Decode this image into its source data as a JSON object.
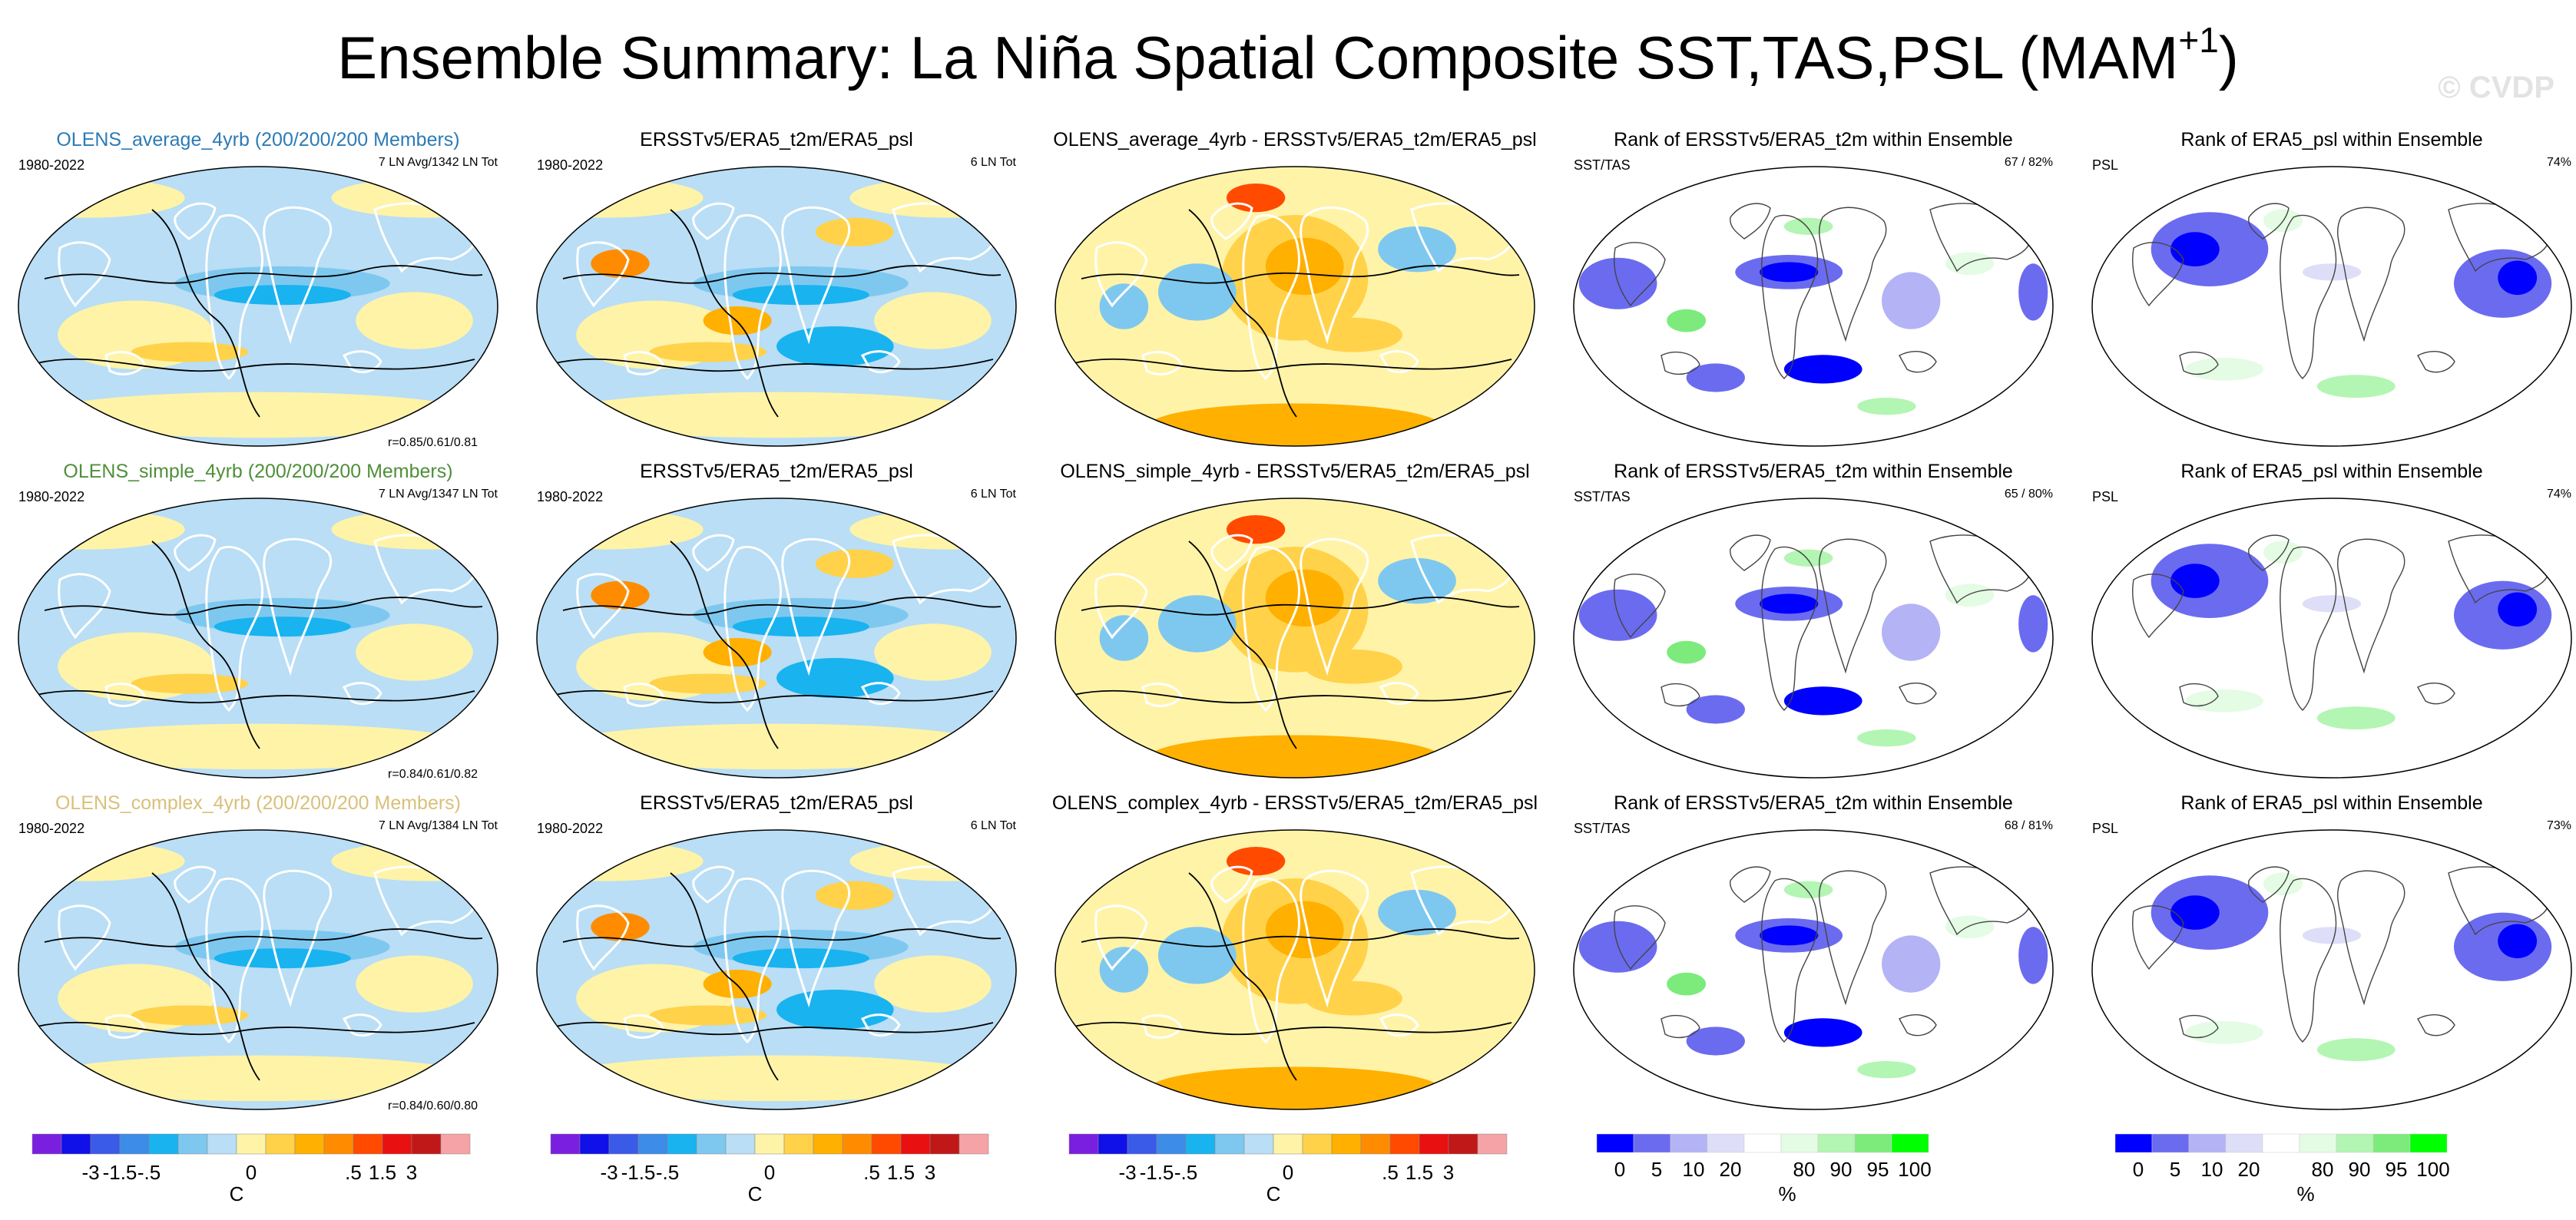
{
  "title": "Ensemble Summary: La Niña Spatial Composite SST,TAS,PSL (MAM",
  "title_sup": "+1",
  "title_close": ")",
  "watermark": "© CVDP",
  "colors": {
    "temp_scale": [
      "#7a1fe0",
      "#1010e8",
      "#3a5ae8",
      "#3c8ce8",
      "#19b3ef",
      "#7ec8ef",
      "#b9def5",
      "#fff3a8",
      "#ffd24a",
      "#ffb000",
      "#ff8c00",
      "#ff4a00",
      "#e81010",
      "#c01818",
      "#f5a3a6"
    ],
    "rank_scale": [
      "#0000ff",
      "#6b6bf0",
      "#b3b3f5",
      "#dedef8",
      "#ffffff",
      "#e4fbe4",
      "#b3f5b3",
      "#7ceb7c",
      "#00ff00"
    ]
  },
  "chart_data": {
    "type": "map_panels",
    "rows": [
      {
        "panels": [
          {
            "title": "OLENS_average_4yrb (200/200/200 Members)",
            "title_color": "#2c7bb6",
            "left": "1980-2022",
            "right": "7 LN Avg/1342 LN Tot",
            "bottom": "r=0.85/0.61/0.81",
            "kind": "model"
          },
          {
            "title": "ERSSTv5/ERA5_t2m/ERA5_psl",
            "left": "1980-2022",
            "right": "6 LN Tot",
            "kind": "obs"
          },
          {
            "title": "OLENS_average_4yrb - ERSSTv5/ERA5_t2m/ERA5_psl",
            "kind": "diff"
          },
          {
            "title": "Rank of ERSSTv5/ERA5_t2m within Ensemble",
            "left": "SST/TAS",
            "right": "67 /  82%",
            "kind": "rank_sst"
          },
          {
            "title": "Rank of ERA5_psl within Ensemble",
            "left": "PSL",
            "right": "74%",
            "kind": "rank_psl"
          }
        ]
      },
      {
        "panels": [
          {
            "title": "OLENS_simple_4yrb (200/200/200 Members)",
            "title_color": "#4f8f3a",
            "left": "1980-2022",
            "right": "7 LN Avg/1347 LN Tot",
            "bottom": "r=0.84/0.61/0.82",
            "kind": "model"
          },
          {
            "title": "ERSSTv5/ERA5_t2m/ERA5_psl",
            "left": "1980-2022",
            "right": "6 LN Tot",
            "kind": "obs"
          },
          {
            "title": "OLENS_simple_4yrb - ERSSTv5/ERA5_t2m/ERA5_psl",
            "kind": "diff"
          },
          {
            "title": "Rank of ERSSTv5/ERA5_t2m within Ensemble",
            "left": "SST/TAS",
            "right": "65 /  80%",
            "kind": "rank_sst"
          },
          {
            "title": "Rank of ERA5_psl within Ensemble",
            "left": "PSL",
            "right": "74%",
            "kind": "rank_psl"
          }
        ]
      },
      {
        "panels": [
          {
            "title": "OLENS_complex_4yrb (200/200/200 Members)",
            "title_color": "#d9c07a",
            "left": "1980-2022",
            "right": "7 LN Avg/1384 LN Tot",
            "bottom": "r=0.84/0.60/0.80",
            "kind": "model"
          },
          {
            "title": "ERSSTv5/ERA5_t2m/ERA5_psl",
            "left": "1980-2022",
            "right": "6 LN Tot",
            "kind": "obs"
          },
          {
            "title": "OLENS_complex_4yrb - ERSSTv5/ERA5_t2m/ERA5_psl",
            "kind": "diff"
          },
          {
            "title": "Rank of ERSSTv5/ERA5_t2m within Ensemble",
            "left": "SST/TAS",
            "right": "68 /  81%",
            "kind": "rank_sst"
          },
          {
            "title": "Rank of ERA5_psl within Ensemble",
            "left": "PSL",
            "right": "73%",
            "kind": "rank_psl"
          }
        ]
      }
    ],
    "colorbars": [
      {
        "kind": "temp",
        "labels": [
          "-3",
          "-1.5",
          "-.5",
          "0",
          ".5",
          "1.5",
          "3"
        ],
        "unit": "C"
      },
      {
        "kind": "temp",
        "labels": [
          "-3",
          "-1.5",
          "-.5",
          "0",
          ".5",
          "1.5",
          "3"
        ],
        "unit": "C"
      },
      {
        "kind": "temp",
        "labels": [
          "-3",
          "-1.5",
          "-.5",
          "0",
          ".5",
          "1.5",
          "3"
        ],
        "unit": "C"
      },
      {
        "kind": "rank",
        "labels": [
          "0",
          "5",
          "10",
          "20",
          "80",
          "90",
          "95",
          "100"
        ],
        "unit": "%"
      },
      {
        "kind": "rank",
        "labels": [
          "0",
          "5",
          "10",
          "20",
          "80",
          "90",
          "95",
          "100"
        ],
        "unit": "%"
      }
    ]
  }
}
